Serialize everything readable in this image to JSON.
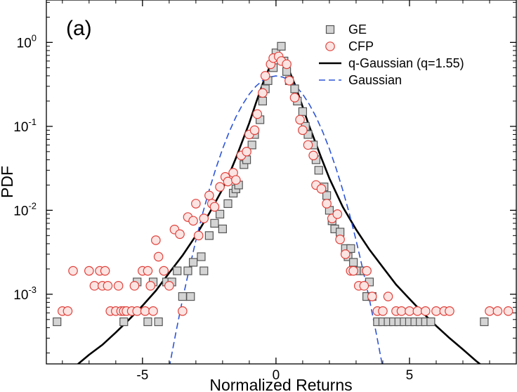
{
  "chart_data": {
    "type": "scatter",
    "title": "",
    "panel_label": "(a)",
    "xlabel": "Normalized Returns",
    "ylabel": "PDF",
    "xlim": [
      -8.6,
      9.0
    ],
    "ylim": [
      0.000148,
      3.2
    ],
    "y_scale": "log",
    "grid": false,
    "legend_position": "top-right",
    "x_ticks": [
      {
        "value": -5,
        "label": "-5"
      },
      {
        "value": 0,
        "label": "0"
      },
      {
        "value": 5,
        "label": "5"
      }
    ],
    "y_ticks": [
      {
        "value": 0.001,
        "base": "10",
        "exp": "-3"
      },
      {
        "value": 0.01,
        "base": "10",
        "exp": "-2"
      },
      {
        "value": 0.1,
        "base": "10",
        "exp": "-1"
      },
      {
        "value": 1,
        "base": "10",
        "exp": "0"
      }
    ],
    "series": [
      {
        "name": "GE",
        "kind": "marker",
        "marker": "square",
        "color": "#555555",
        "fill": "#d4d4d4",
        "x": [
          -8.2,
          -5.7,
          -5.2,
          -4.8,
          -4.6,
          -4.4,
          -4.1,
          -3.9,
          -3.7,
          -3.5,
          -3.3,
          -3.2,
          -3.1,
          -2.8,
          -2.7,
          -2.5,
          -2.3,
          -2.1,
          -2.0,
          -1.8,
          -1.6,
          -1.5,
          -1.4,
          -1.2,
          -1.1,
          -0.9,
          -0.8,
          -0.6,
          -0.5,
          -0.4,
          -0.3,
          -0.1,
          0.0,
          0.2,
          0.3,
          0.4,
          0.5,
          0.7,
          0.8,
          1.0,
          1.1,
          1.2,
          1.4,
          1.5,
          1.6,
          1.8,
          1.9,
          2.0,
          2.1,
          2.2,
          2.4,
          2.6,
          2.7,
          2.8,
          2.9,
          3.1,
          3.3,
          3.4,
          3.5,
          3.6,
          3.8,
          4.0,
          4.2,
          4.4,
          4.6,
          4.8,
          5.0,
          5.2,
          5.4,
          5.6,
          5.8,
          7.8
        ],
        "y": [
          0.00047,
          0.00047,
          0.0014,
          0.00047,
          0.0014,
          0.00047,
          0.0014,
          0.0014,
          0.0019,
          0.00094,
          0.0019,
          0.00094,
          0.0024,
          0.0028,
          0.0019,
          0.005,
          0.007,
          0.009,
          0.006,
          0.012,
          0.016,
          0.018,
          0.02,
          0.035,
          0.04,
          0.06,
          0.08,
          0.12,
          0.2,
          0.28,
          0.35,
          0.5,
          0.75,
          0.9,
          0.6,
          0.45,
          0.35,
          0.28,
          0.2,
          0.15,
          0.1,
          0.08,
          0.06,
          0.04,
          0.03,
          0.019,
          0.015,
          0.01,
          0.0075,
          0.006,
          0.0055,
          0.0035,
          0.0028,
          0.0035,
          0.0024,
          0.0019,
          0.0019,
          0.00094,
          0.0014,
          0.00094,
          0.00047,
          0.00047,
          0.00047,
          0.00047,
          0.00047,
          0.00047,
          0.00047,
          0.00047,
          0.00047,
          0.00047,
          0.00047,
          0.00047
        ]
      },
      {
        "name": "CFP",
        "kind": "marker",
        "marker": "circle",
        "color": "#e0403a",
        "fill": "#fbe4e2",
        "x": [
          -8.0,
          -7.8,
          -7.6,
          -7.0,
          -6.8,
          -6.6,
          -6.5,
          -6.4,
          -6.3,
          -6.2,
          -6.0,
          -5.9,
          -5.8,
          -5.7,
          -5.6,
          -5.4,
          -5.3,
          -5.2,
          -5.0,
          -4.9,
          -4.8,
          -4.7,
          -4.6,
          -4.5,
          -4.4,
          -4.2,
          -4.0,
          -3.8,
          -3.6,
          -3.5,
          -3.3,
          -3.1,
          -3.0,
          -2.9,
          -2.7,
          -2.5,
          -2.4,
          -2.3,
          -2.1,
          -1.9,
          -1.8,
          -1.6,
          -1.5,
          -1.3,
          -1.1,
          -1.0,
          -0.8,
          -0.7,
          -0.5,
          -0.4,
          -0.2,
          -0.1,
          0.1,
          0.2,
          0.4,
          0.5,
          0.7,
          0.9,
          1.0,
          1.2,
          1.4,
          1.5,
          1.7,
          1.9,
          2.1,
          2.3,
          2.4,
          2.6,
          2.8,
          2.9,
          3.1,
          3.3,
          3.4,
          3.6,
          3.8,
          4.0,
          4.2,
          4.5,
          4.7,
          5.0,
          5.3,
          5.6,
          6.0,
          6.3,
          6.5,
          8.0,
          8.3,
          8.7
        ],
        "y": [
          0.00063,
          0.00063,
          0.0019,
          0.0019,
          0.00126,
          0.0019,
          0.00126,
          0.0019,
          0.00126,
          0.00063,
          0.00063,
          0.00126,
          0.00063,
          0.00063,
          0.00063,
          0.00063,
          0.00126,
          0.00063,
          0.0019,
          0.00063,
          0.0019,
          0.00126,
          0.00063,
          0.0044,
          0.0028,
          0.0019,
          0.00126,
          0.0059,
          0.0052,
          0.00063,
          0.0083,
          0.0075,
          0.012,
          0.005,
          0.008,
          0.015,
          0.012,
          0.011,
          0.019,
          0.025,
          0.022,
          0.028,
          0.023,
          0.045,
          0.05,
          0.08,
          0.09,
          0.14,
          0.25,
          0.4,
          0.55,
          0.65,
          0.68,
          0.6,
          0.55,
          0.35,
          0.22,
          0.12,
          0.09,
          0.06,
          0.045,
          0.02,
          0.018,
          0.012,
          0.008,
          0.009,
          0.0045,
          0.003,
          0.0019,
          0.0019,
          0.00126,
          0.00126,
          0.0019,
          0.00094,
          0.00063,
          0.00063,
          0.00094,
          0.00063,
          0.00063,
          0.00063,
          0.00063,
          0.00063,
          0.00063,
          0.00063,
          0.00063,
          0.00063,
          0.00063,
          0.00063
        ]
      },
      {
        "name": "q-Gaussian (q=1.55)",
        "kind": "line",
        "color": "#000000",
        "dash": "solid",
        "x": [
          -8.0,
          -7.5,
          -7.0,
          -6.5,
          -6.0,
          -5.5,
          -5.0,
          -4.5,
          -4.0,
          -3.5,
          -3.0,
          -2.5,
          -2.0,
          -1.75,
          -1.5,
          -1.25,
          -1.0,
          -0.75,
          -0.5,
          -0.25,
          0.0,
          0.1,
          0.2,
          0.45,
          0.7,
          0.95,
          1.2,
          1.45,
          1.7,
          2.0,
          2.5,
          3.0,
          3.5,
          4.0,
          4.5,
          5.0,
          5.5,
          6.0,
          6.5,
          7.0,
          7.5,
          8.0
        ],
        "y": [
          0.00011,
          0.00014,
          0.00019,
          0.00025,
          0.00035,
          0.0005,
          0.00073,
          0.0011,
          0.0018,
          0.0029,
          0.005,
          0.0092,
          0.018,
          0.027,
          0.042,
          0.068,
          0.11,
          0.19,
          0.32,
          0.5,
          0.66,
          0.68,
          0.66,
          0.5,
          0.32,
          0.19,
          0.11,
          0.068,
          0.042,
          0.024,
          0.011,
          0.0059,
          0.0034,
          0.0021,
          0.0013,
          0.00088,
          0.0006,
          0.00042,
          0.0003,
          0.00022,
          0.00016,
          0.00012
        ]
      },
      {
        "name": "Gaussian",
        "kind": "line",
        "color": "#2c54d8",
        "dash": "dashed",
        "x": [
          -4.0,
          -3.75,
          -3.5,
          -3.25,
          -3.0,
          -2.75,
          -2.5,
          -2.25,
          -2.0,
          -1.75,
          -1.5,
          -1.25,
          -1.0,
          -0.75,
          -0.5,
          -0.25,
          0.0,
          0.25,
          0.5,
          0.75,
          1.0,
          1.25,
          1.5,
          1.75,
          2.0,
          2.25,
          2.5,
          2.75,
          3.0,
          3.25,
          3.5,
          3.75,
          4.0
        ],
        "y": [
          0.000134,
          0.00035,
          0.00087,
          0.002,
          0.0044,
          0.0091,
          0.0175,
          0.0317,
          0.054,
          0.0863,
          0.1295,
          0.1826,
          0.242,
          0.3011,
          0.3521,
          0.3867,
          0.3989,
          0.3867,
          0.3521,
          0.3011,
          0.242,
          0.1826,
          0.1295,
          0.0863,
          0.054,
          0.0317,
          0.0175,
          0.0091,
          0.0044,
          0.002,
          0.00087,
          0.00035,
          0.000134
        ]
      }
    ]
  }
}
